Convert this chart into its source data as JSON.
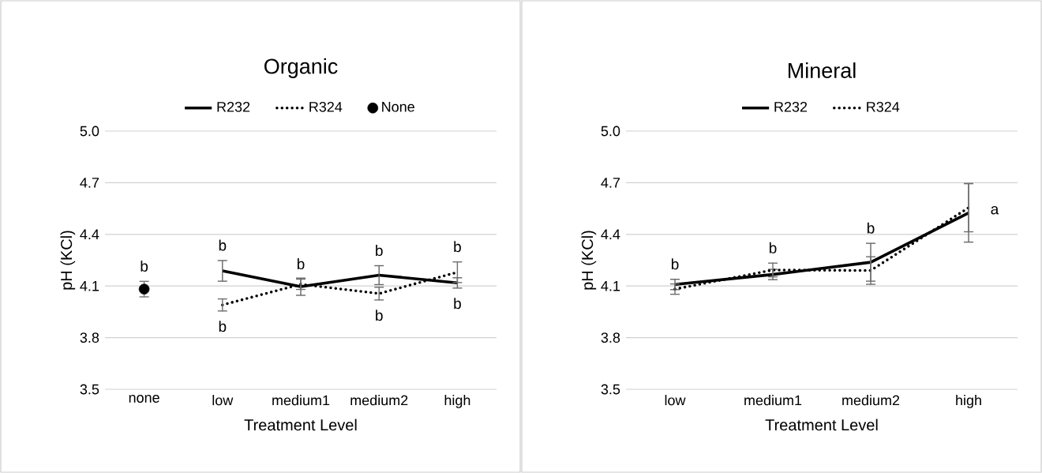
{
  "chart_data": [
    {
      "type": "line",
      "title": "Organic",
      "xlabel": "Treatment Level",
      "ylabel": "pH (KCl)",
      "categories": [
        "none",
        "low",
        "medium1",
        "medium2",
        "high"
      ],
      "ylim": [
        3.5,
        5.0
      ],
      "yticks": [
        3.5,
        3.8,
        4.1,
        4.4,
        4.7,
        {
          "value": 5.0,
          "label": "5.0"
        }
      ],
      "grid": "y",
      "legend": "top",
      "series": [
        {
          "name": "R232",
          "color": "#000000",
          "line_style": "solid",
          "values": [
            null,
            4.188,
            4.096,
            4.163,
            4.118
          ],
          "errors": [
            null,
            0.06,
            0.05,
            0.055,
            0.03
          ]
        },
        {
          "name": "R324",
          "color": "#000000",
          "line_style": "dotted",
          "values": [
            null,
            3.99,
            4.11,
            4.056,
            4.18
          ],
          "errors": [
            null,
            0.035,
            0.03,
            0.037,
            0.06
          ]
        },
        {
          "name": "None",
          "type": "scatter",
          "marker": "circle",
          "color": "#000000",
          "values": [
            4.082,
            null,
            null,
            null,
            null
          ],
          "errors": [
            0.045,
            null,
            null,
            null,
            null
          ]
        }
      ],
      "annotations": [
        {
          "text": "b",
          "x": "none",
          "y": 4.082
        },
        {
          "text": "b",
          "x": "low",
          "y": 4.188
        },
        {
          "text": "b",
          "x": "low",
          "y": 3.99
        },
        {
          "text": "b",
          "x": "medium1",
          "y": 4.11
        },
        {
          "text": "b",
          "x": "medium2",
          "y": 4.163
        },
        {
          "text": "b",
          "x": "medium2",
          "y": 4.056
        },
        {
          "text": "b",
          "x": "high",
          "y": 4.18
        },
        {
          "text": "b",
          "x": "high",
          "y": 4.118
        }
      ]
    },
    {
      "type": "line",
      "title": "Mineral",
      "xlabel": "Treatment Level",
      "ylabel": "pH (KCl)",
      "categories": [
        "low",
        "medium1",
        "medium2",
        "high"
      ],
      "ylim": [
        3.5,
        5.0
      ],
      "yticks": [
        3.5,
        3.8,
        4.1,
        4.4,
        4.7,
        {
          "value": 5.0,
          "label": "5.0"
        }
      ],
      "grid": "y",
      "legend": "top",
      "series": [
        {
          "name": "R232",
          "color": "#000000",
          "line_style": "solid",
          "values": [
            4.109,
            4.167,
            4.238,
            4.525
          ],
          "errors": [
            0.03,
            0.03,
            0.11,
            0.17
          ]
        },
        {
          "name": "R324",
          "color": "#000000",
          "line_style": "dotted",
          "values": [
            4.082,
            4.193,
            4.19,
            4.555
          ],
          "errors": [
            0.03,
            0.04,
            0.08,
            0.14
          ]
        }
      ],
      "annotations": [
        {
          "text": "b",
          "x": "low",
          "y": 4.109
        },
        {
          "text": "b",
          "x": "medium1",
          "y": 4.193
        },
        {
          "text": "b",
          "x": "medium2",
          "y": 4.238
        },
        "a"
      ]
    }
  ]
}
